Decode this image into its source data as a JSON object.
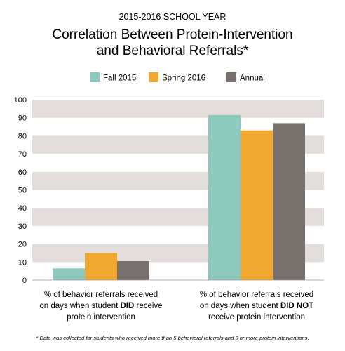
{
  "chart_data": {
    "type": "bar",
    "supertitle": "2015-2016 SCHOOL YEAR",
    "title_lines": [
      "Correlation Between Protein-Intervention",
      "and Behavioral Referrals*"
    ],
    "ylim": [
      0,
      100
    ],
    "yticks": [
      0,
      10,
      20,
      30,
      40,
      50,
      60,
      70,
      80,
      90,
      100
    ],
    "grid": "horizontal bands",
    "legend_position": "top-center",
    "categories": [
      {
        "lines": [
          [
            {
              "text": "% of behavior referrals received",
              "bold": false
            }
          ],
          [
            {
              "text": "on days when student ",
              "bold": false
            },
            {
              "text": "DID",
              "bold": true
            },
            {
              "text": " receive",
              "bold": false
            }
          ],
          [
            {
              "text": "protein intervention",
              "bold": false
            }
          ]
        ]
      },
      {
        "lines": [
          [
            {
              "text": "% of behavior referrals received",
              "bold": false
            }
          ],
          [
            {
              "text": "on days when student ",
              "bold": false
            },
            {
              "text": "DID NOT",
              "bold": true
            }
          ],
          [
            {
              "text": "receive protein intervention",
              "bold": false
            }
          ]
        ]
      }
    ],
    "series": [
      {
        "name": "Fall 2015",
        "color": "#8ec9be",
        "values": [
          6.5,
          91.5
        ]
      },
      {
        "name": "Spring 2016",
        "color": "#f0a830",
        "values": [
          15,
          83
        ]
      },
      {
        "name": "Annual",
        "color": "#77706c",
        "values": [
          10.5,
          87
        ]
      }
    ],
    "band_color": "#e3dedc",
    "footnote": "* Data was collected for students who received more than 5 behavioral referrals and 3 or more protein interventions."
  }
}
